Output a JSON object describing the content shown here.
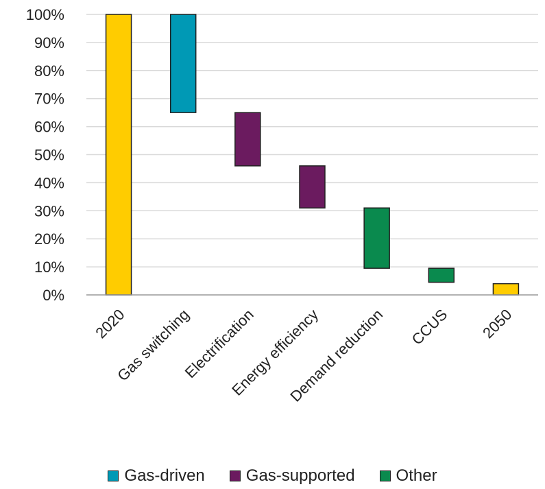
{
  "chart_data": {
    "type": "bar",
    "subtype": "waterfall",
    "title": "",
    "xlabel": "",
    "ylabel": "",
    "ylim": [
      0,
      100
    ],
    "y_ticks": [
      "0%",
      "10%",
      "20%",
      "30%",
      "40%",
      "50%",
      "60%",
      "70%",
      "80%",
      "90%",
      "100%"
    ],
    "grid": true,
    "legend_position": "bottom",
    "categories": [
      "2020",
      "Gas switching",
      "Electrification",
      "Energy efficiency",
      "Demand reduction",
      "CCUS",
      "2050"
    ],
    "bars": [
      {
        "category": "2020",
        "start": 0,
        "end": 100,
        "group": "total"
      },
      {
        "category": "Gas switching",
        "start": 65,
        "end": 100,
        "group": "Gas-driven"
      },
      {
        "category": "Electrification",
        "start": 46,
        "end": 65,
        "group": "Gas-supported"
      },
      {
        "category": "Energy efficiency",
        "start": 31,
        "end": 46,
        "group": "Gas-supported"
      },
      {
        "category": "Demand reduction",
        "start": 9.5,
        "end": 31,
        "group": "Other"
      },
      {
        "category": "CCUS",
        "start": 4.5,
        "end": 9.5,
        "group": "Other"
      },
      {
        "category": "2050",
        "start": 0,
        "end": 4,
        "group": "total"
      }
    ],
    "colors": {
      "total": "#FFCC00",
      "Gas-driven": "#0099B5",
      "Gas-supported": "#6B1B5F",
      "Other": "#0A8A4E"
    },
    "legend": [
      {
        "label": "Gas-driven",
        "color": "#0099B5"
      },
      {
        "label": "Gas-supported",
        "color": "#6B1B5F"
      },
      {
        "label": "Other",
        "color": "#0A8A4E"
      }
    ]
  }
}
